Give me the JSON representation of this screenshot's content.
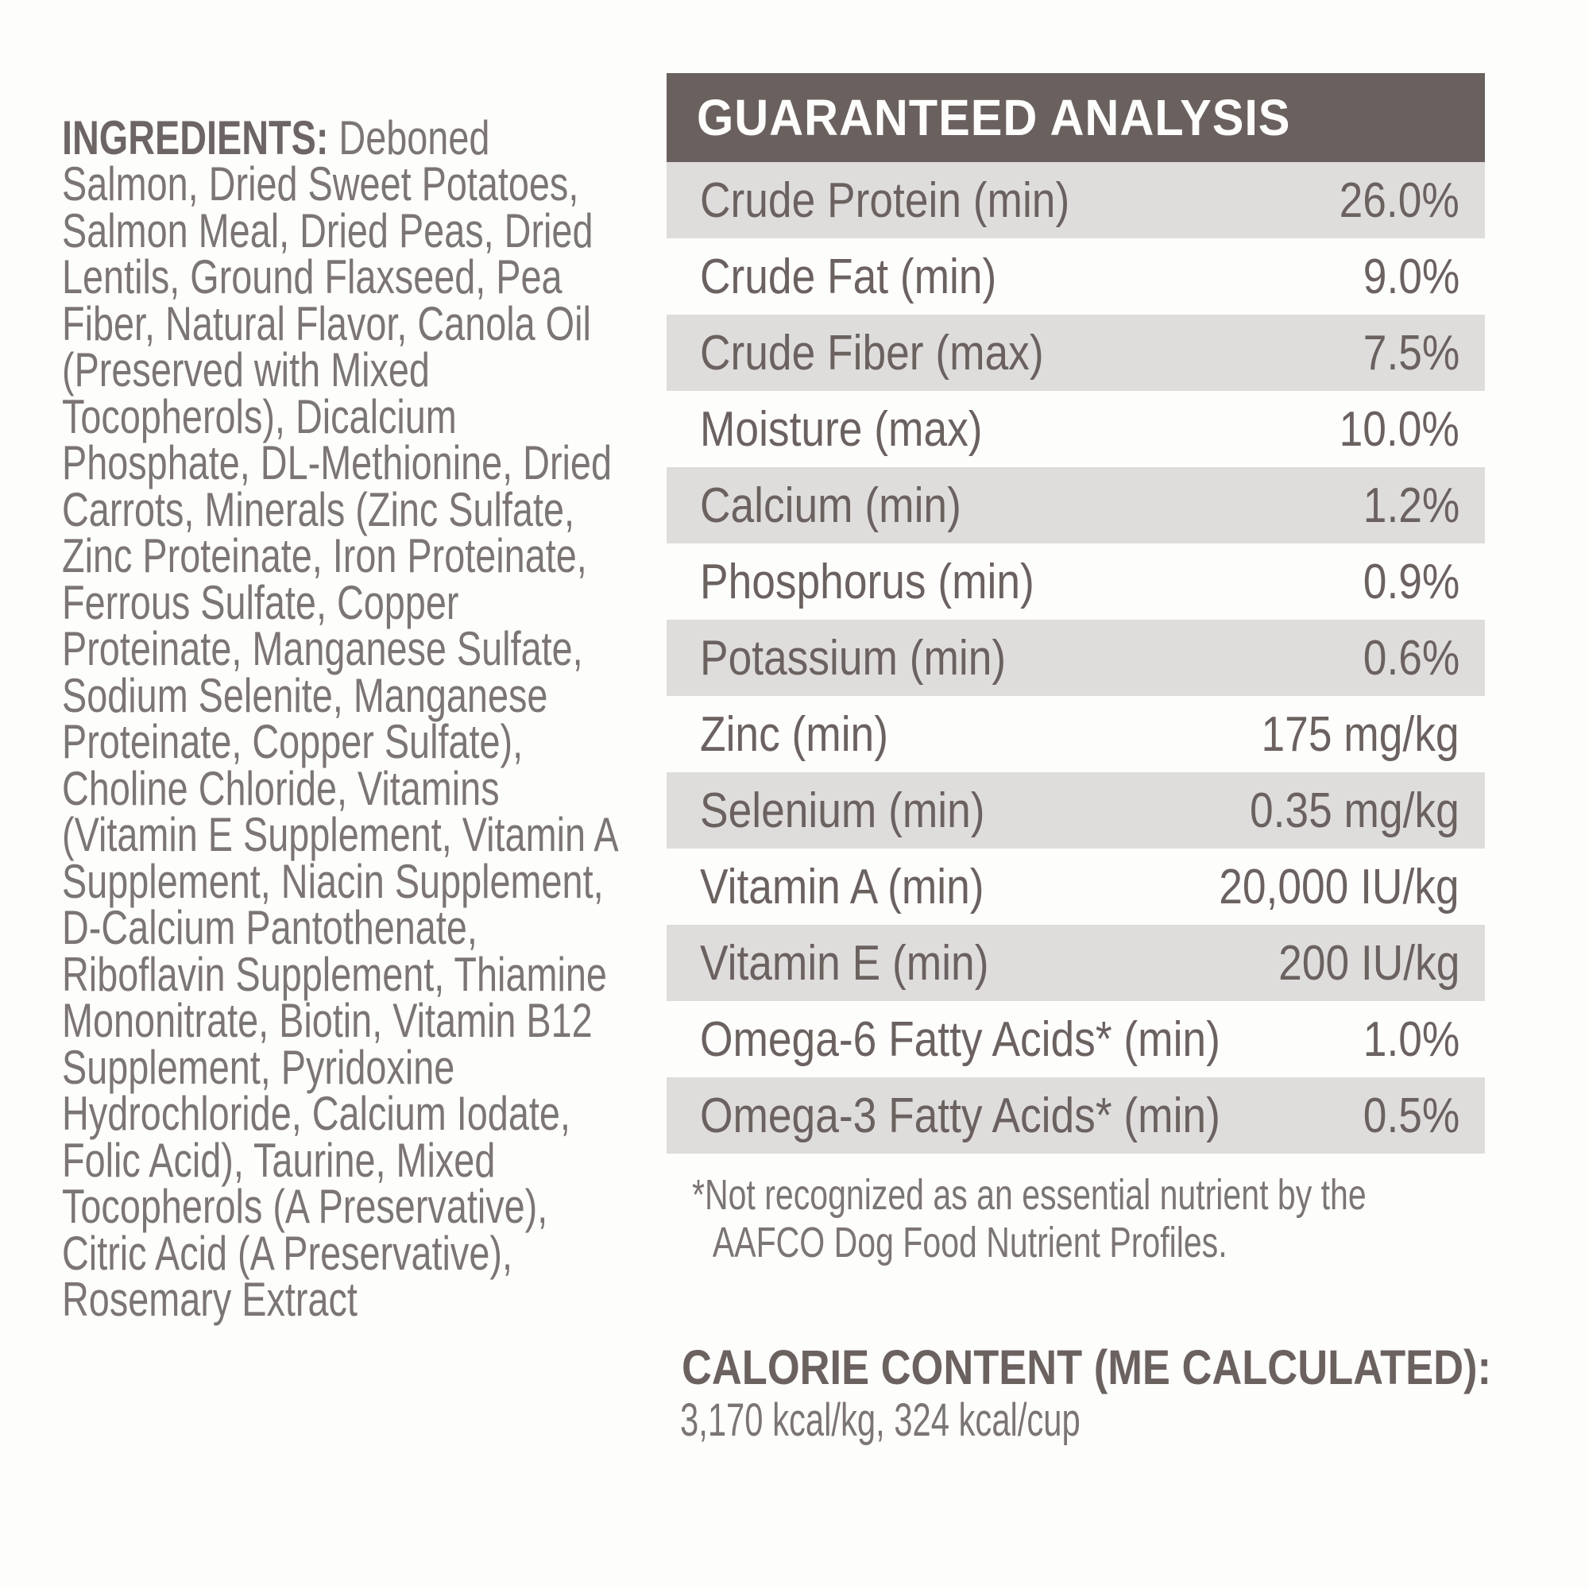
{
  "ingredients": {
    "label": "INGREDIENTS:",
    "lines": [
      "Deboned",
      "Salmon, Dried Sweet Potatoes,",
      "Salmon Meal, Dried Peas, Dried",
      "Lentils, Ground Flaxseed, Pea",
      "Fiber, Natural Flavor, Canola Oil",
      "(Preserved with Mixed",
      "Tocopherols), Dicalcium",
      "Phosphate, DL-Methionine, Dried",
      "Carrots, Minerals (Zinc Sulfate,",
      "Zinc Proteinate, Iron Proteinate,",
      "Ferrous Sulfate, Copper",
      "Proteinate, Manganese Sulfate,",
      "Sodium Selenite, Manganese",
      "Proteinate, Copper Sulfate),",
      "Choline Chloride, Vitamins",
      "(Vitamin E Supplement, Vitamin A",
      "Supplement, Niacin Supplement,",
      "D-Calcium Pantothenate,",
      "Riboflavin Supplement, Thiamine",
      "Mononitrate, Biotin, Vitamin B12",
      "Supplement, Pyridoxine",
      "Hydrochloride, Calcium Iodate,",
      "Folic Acid), Taurine, Mixed",
      "Tocopherols (A Preservative),",
      "Citric Acid (A Preservative),",
      "Rosemary Extract"
    ]
  },
  "analysis": {
    "title": "GUARANTEED ANALYSIS",
    "rows": [
      {
        "label": "Crude Protein (min)",
        "value": "26.0%"
      },
      {
        "label": "Crude Fat (min)",
        "value": "9.0%"
      },
      {
        "label": "Crude Fiber (max)",
        "value": "7.5%"
      },
      {
        "label": "Moisture (max)",
        "value": "10.0%"
      },
      {
        "label": "Calcium (min)",
        "value": "1.2%"
      },
      {
        "label": "Phosphorus (min)",
        "value": "0.9%"
      },
      {
        "label": "Potassium (min)",
        "value": "0.6%"
      },
      {
        "label": "Zinc (min)",
        "value": "175 mg/kg"
      },
      {
        "label": "Selenium (min)",
        "value": "0.35 mg/kg"
      },
      {
        "label": "Vitamin A (min)",
        "value": "20,000 IU/kg"
      },
      {
        "label": "Vitamin E (min)",
        "value": "200 IU/kg"
      },
      {
        "label": "Omega-6 Fatty Acids* (min)",
        "value": "1.0%"
      },
      {
        "label": "Omega-3 Fatty Acids* (min)",
        "value": "0.5%"
      }
    ],
    "footnote_line1": "*Not recognized as an essential nutrient by the",
    "footnote_line2": "AAFCO Dog Food Nutrient Profiles.",
    "colors": {
      "header_bg": "#6a615f",
      "header_text": "#fdfdfc",
      "row_alt_bg": "#dfdddc",
      "row_text": "#6b6260"
    }
  },
  "calorie": {
    "heading": "CALORIE CONTENT (ME CALCULATED):",
    "values": "3,170 kcal/kg, 324 kcal/cup"
  },
  "text_colors": {
    "ingredients_body": "#7b7573",
    "ingredients_label": "#6c6563",
    "footnote": "#7b7573"
  }
}
